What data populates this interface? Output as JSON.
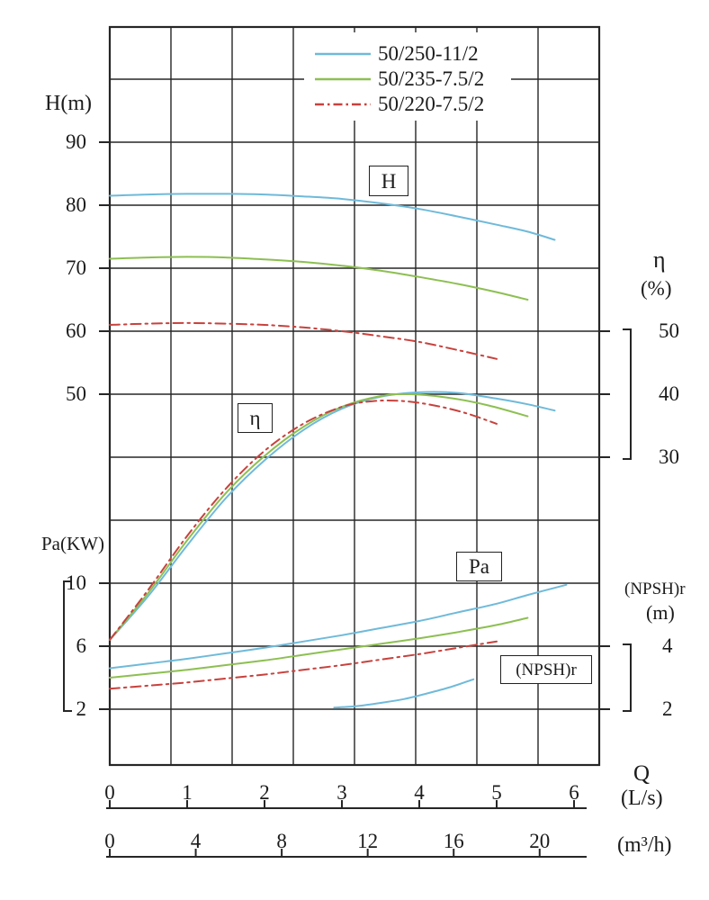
{
  "chart_data": {
    "type": "line",
    "x": {
      "label": "Q",
      "units": [
        "(L/s)",
        "(m³/h)"
      ],
      "ticks_ls": [
        0,
        1,
        2,
        3,
        4,
        5,
        6
      ],
      "ticks_m3h": [
        0,
        4,
        8,
        12,
        16,
        20
      ],
      "ls_per_m3h": 3.6
    },
    "axes": {
      "H": {
        "title": "H(m)",
        "ticks": [
          90,
          80,
          70,
          60,
          50
        ]
      },
      "Pa": {
        "title": "Pa(KW)",
        "ticks": [
          10,
          6,
          2
        ]
      },
      "eta": {
        "title": "η",
        "unit": "(%)",
        "ticks": [
          50,
          40,
          30
        ]
      },
      "NPSHr": {
        "title": "(NPSH)r",
        "unit": "(m)",
        "ticks": [
          4,
          2
        ]
      }
    },
    "curve_tags": {
      "H": "H",
      "eta": "η",
      "Pa": "Pa",
      "NPSHr": "(NPSH)r"
    },
    "models": [
      {
        "label": "50/250-11/2",
        "color": "#6fbada",
        "style": "solid"
      },
      {
        "label": "50/235-7.5/2",
        "color": "#8dbf52",
        "style": "solid"
      },
      {
        "label": "50/220-7.5/2",
        "color": "#c7423d",
        "style": "dashdot"
      }
    ],
    "series": [
      {
        "measure": "H",
        "model_index": 0,
        "points": [
          [
            0,
            81.5
          ],
          [
            0.5,
            81.7
          ],
          [
            1,
            81.8
          ],
          [
            1.5,
            81.8
          ],
          [
            2,
            81.7
          ],
          [
            2.5,
            81.4
          ],
          [
            3,
            81.0
          ],
          [
            3.5,
            80.3
          ],
          [
            4,
            79.4
          ],
          [
            4.5,
            78.2
          ],
          [
            5,
            76.9
          ],
          [
            5.4,
            75.8
          ],
          [
            5.75,
            74.5
          ]
        ]
      },
      {
        "measure": "H",
        "model_index": 1,
        "points": [
          [
            0,
            71.5
          ],
          [
            0.5,
            71.7
          ],
          [
            1,
            71.8
          ],
          [
            1.5,
            71.7
          ],
          [
            2,
            71.4
          ],
          [
            2.5,
            71.0
          ],
          [
            3,
            70.4
          ],
          [
            3.5,
            69.6
          ],
          [
            4,
            68.6
          ],
          [
            4.5,
            67.5
          ],
          [
            5,
            66.2
          ],
          [
            5.4,
            65.0
          ]
        ]
      },
      {
        "measure": "H",
        "model_index": 2,
        "points": [
          [
            0,
            61.0
          ],
          [
            0.5,
            61.2
          ],
          [
            1,
            61.3
          ],
          [
            1.5,
            61.2
          ],
          [
            2,
            61.0
          ],
          [
            2.5,
            60.6
          ],
          [
            3,
            60.0
          ],
          [
            3.5,
            59.2
          ],
          [
            4,
            58.3
          ],
          [
            4.5,
            57.0
          ],
          [
            5,
            55.6
          ]
        ]
      },
      {
        "measure": "eta",
        "model_index": 0,
        "points": [
          [
            0,
            1
          ],
          [
            0.5,
            8
          ],
          [
            1,
            16
          ],
          [
            1.5,
            23.5
          ],
          [
            2,
            29.5
          ],
          [
            2.5,
            34.3
          ],
          [
            3,
            37.7
          ],
          [
            3.5,
            39.6
          ],
          [
            4,
            40.3
          ],
          [
            4.5,
            40.2
          ],
          [
            5,
            39.3
          ],
          [
            5.4,
            38.4
          ],
          [
            5.75,
            37.4
          ]
        ]
      },
      {
        "measure": "eta",
        "model_index": 1,
        "points": [
          [
            0,
            1
          ],
          [
            0.5,
            8.5
          ],
          [
            1,
            16.8
          ],
          [
            1.5,
            24.3
          ],
          [
            2,
            30.2
          ],
          [
            2.5,
            34.8
          ],
          [
            3,
            38.0
          ],
          [
            3.5,
            39.7
          ],
          [
            3.9,
            40.0
          ],
          [
            4.4,
            39.4
          ],
          [
            4.9,
            38.2
          ],
          [
            5.4,
            36.5
          ]
        ]
      },
      {
        "measure": "eta",
        "model_index": 2,
        "points": [
          [
            0,
            1
          ],
          [
            0.5,
            9
          ],
          [
            1,
            17.5
          ],
          [
            1.5,
            25.0
          ],
          [
            2,
            31.0
          ],
          [
            2.5,
            35.3
          ],
          [
            3,
            38.0
          ],
          [
            3.4,
            38.9
          ],
          [
            3.8,
            38.9
          ],
          [
            4.2,
            38.2
          ],
          [
            4.6,
            37.0
          ],
          [
            5,
            35.3
          ]
        ]
      },
      {
        "measure": "Pa",
        "model_index": 0,
        "points": [
          [
            0,
            4.6
          ],
          [
            0.5,
            4.9
          ],
          [
            1,
            5.2
          ],
          [
            1.5,
            5.55
          ],
          [
            2,
            5.9
          ],
          [
            2.5,
            6.3
          ],
          [
            3,
            6.7
          ],
          [
            3.5,
            7.15
          ],
          [
            4,
            7.6
          ],
          [
            4.5,
            8.15
          ],
          [
            5,
            8.7
          ],
          [
            5.4,
            9.25
          ],
          [
            5.9,
            9.9
          ]
        ]
      },
      {
        "measure": "Pa",
        "model_index": 1,
        "points": [
          [
            0,
            4.0
          ],
          [
            0.5,
            4.25
          ],
          [
            1,
            4.5
          ],
          [
            1.5,
            4.8
          ],
          [
            2,
            5.1
          ],
          [
            2.5,
            5.45
          ],
          [
            3,
            5.8
          ],
          [
            3.5,
            6.15
          ],
          [
            4,
            6.5
          ],
          [
            4.5,
            6.9
          ],
          [
            5,
            7.35
          ],
          [
            5.4,
            7.8
          ]
        ]
      },
      {
        "measure": "Pa",
        "model_index": 2,
        "points": [
          [
            0,
            3.3
          ],
          [
            0.5,
            3.5
          ],
          [
            1,
            3.7
          ],
          [
            1.5,
            3.95
          ],
          [
            2,
            4.2
          ],
          [
            2.5,
            4.5
          ],
          [
            3,
            4.8
          ],
          [
            3.5,
            5.15
          ],
          [
            4,
            5.5
          ],
          [
            4.5,
            5.9
          ],
          [
            5,
            6.3
          ]
        ]
      },
      {
        "measure": "NPSHr",
        "model_index": 0,
        "points": [
          [
            2.9,
            2.05
          ],
          [
            3.2,
            2.1
          ],
          [
            3.5,
            2.2
          ],
          [
            3.8,
            2.32
          ],
          [
            4.1,
            2.5
          ],
          [
            4.4,
            2.7
          ],
          [
            4.7,
            2.95
          ]
        ]
      }
    ]
  }
}
